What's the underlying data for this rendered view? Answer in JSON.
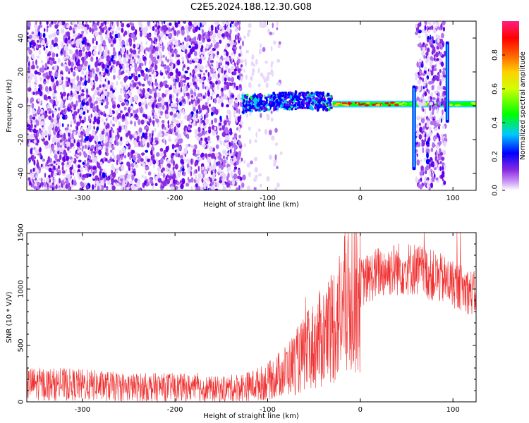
{
  "figure_title": "C2E5.2024.188.12.30.G08",
  "colors": {
    "snr_line": "#f03030",
    "colormap": [
      "#ffffff",
      "#e8d6fb",
      "#b070f0",
      "#8a2be2",
      "#6600ee",
      "#0000ff",
      "#00c8ff",
      "#00e8a0",
      "#00ff00",
      "#d0ff00",
      "#ffd000",
      "#ff6000",
      "#ff0000",
      "#ff2080"
    ]
  },
  "chart_data": [
    {
      "type": "heatmap",
      "title": "C2E5.2024.188.12.30.G08",
      "xlabel": "Height of straight line (km)",
      "ylabel": "Frequency (Hz)",
      "xlim": [
        -360,
        125
      ],
      "ylim": [
        -50,
        50
      ],
      "xticks": [
        -300,
        -200,
        -100,
        0,
        100
      ],
      "yticks": [
        -40,
        -20,
        0,
        20,
        40
      ],
      "colorbar": {
        "label": "Normalized spectral amplitude",
        "range": [
          0.0,
          1.0
        ],
        "ticks": [
          "0.0",
          "0.2",
          "0.4",
          "0.6",
          "0.8"
        ]
      },
      "regions": [
        {
          "kind": "noise",
          "x": [
            -360,
            -128
          ],
          "y": [
            -50,
            50
          ],
          "amplitude": 0.15
        },
        {
          "kind": "sparse-noise",
          "x": [
            -128,
            -85
          ],
          "y": [
            -50,
            50
          ],
          "amplitude": 0.05
        },
        {
          "kind": "signal-band",
          "x": [
            -128,
            -30
          ],
          "y": [
            -5,
            5
          ],
          "amplitude": 0.3
        },
        {
          "kind": "signal-line",
          "x": [
            -30,
            125
          ],
          "y": [
            -1,
            3
          ],
          "amplitude": 0.85
        },
        {
          "kind": "noise",
          "x": [
            60,
            92
          ],
          "y": [
            -50,
            50
          ],
          "amplitude": 0.15
        },
        {
          "kind": "spike",
          "x": [
            57,
            59
          ],
          "y": [
            -38,
            12
          ],
          "amplitude": 0.3
        },
        {
          "kind": "spike",
          "x": [
            93,
            95
          ],
          "y": [
            -10,
            38
          ],
          "amplitude": 0.3
        }
      ]
    },
    {
      "type": "line",
      "xlabel": "Height of straight line (km)",
      "ylabel": "SNR (10 * V/V)",
      "xlim": [
        -360,
        125
      ],
      "ylim": [
        0,
        1500
      ],
      "xticks": [
        -300,
        -200,
        -100,
        0,
        100
      ],
      "yticks": [
        0,
        500,
        1000,
        1500
      ],
      "series": [
        {
          "x": [
            -360,
            -300,
            -250,
            -200,
            -150,
            -120,
            -100,
            -80,
            -60,
            -40,
            -30,
            -20,
            -10,
            0,
            20,
            40,
            60,
            80,
            100,
            125
          ],
          "y": [
            160,
            150,
            130,
            130,
            110,
            140,
            180,
            280,
            420,
            580,
            680,
            800,
            950,
            1050,
            1150,
            1180,
            1180,
            1110,
            1050,
            950
          ]
        }
      ]
    }
  ]
}
